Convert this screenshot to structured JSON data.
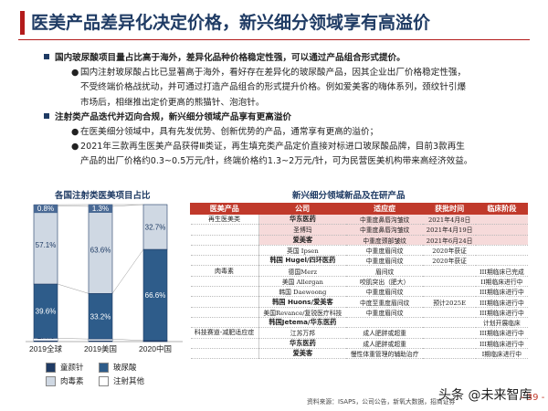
{
  "header": {
    "title": "医美产品差异化决定价格，新兴细分领域享有高溢价"
  },
  "body": {
    "b1": "国内玻尿酸项目量占比高于海外，差异化品种价格稳定性强，可以通过产品组合形式提价。",
    "b1_text_l1": "国内注射玻尿酸占比已显著高于海外，看好存在差异化的玻尿酸产品，因其企业出厂价格稳定性强，",
    "b1_text_l2": "不受终端价格战扰动，并可通过打造产品组合的形式提升价格。例如爱美客的嗨体系列，颈纹针引爆",
    "b1_text_l3": "市场后，相继推出定价更高的熊猫针、泡泡针。",
    "b2": "注射类产品迭代并迈向合规，新兴细分领域产品享有更高溢价",
    "b2_p1": "在医美细分领域中，具有先发优势、创新优势的产品，通常享有更高的溢价；",
    "b2_p2_l1": "2021年三款再生医美产品获得Ⅲ类证，再生填充类产品定价直接对标进口玻尿酸品牌，目前3款再生",
    "b2_p2_l2": "产品的出厂价格约0.3~0.5万元/针，终端价格约1.3~2万元/针，可为民营医美机构带来高经济效益。"
  },
  "left_chart_title": "各国注射类医美项目占比",
  "right_table_title": "新兴细分领域新品及在研产品",
  "chart_data": {
    "type": "bar",
    "stacked": true,
    "categories": [
      "2019全球",
      "2019美国",
      "2020中国"
    ],
    "series": [
      {
        "name": "童颜针",
        "color": "#1f3b64",
        "values": [
          2.4,
          1.9,
          0.7
        ]
      },
      {
        "name": "玻尿酸",
        "color": "#2e5c8a",
        "values": [
          39.6,
          33.2,
          66.6
        ]
      },
      {
        "name": "肉毒素",
        "color": "#cfd8e3",
        "values": [
          57.1,
          63.6,
          32.7
        ]
      },
      {
        "name": "注射其他",
        "color": "#ffffff",
        "values": [
          0.8,
          1.3,
          0.0
        ]
      }
    ],
    "labels": [
      [
        "2.4%",
        "39.6%",
        "57.1%",
        "0.8%"
      ],
      [
        "1.9%",
        "33.2%",
        "63.6%",
        "1.3%"
      ],
      [
        "0.7%",
        "66.6%",
        "32.7%",
        ""
      ]
    ],
    "ylim": [
      0,
      100
    ]
  },
  "table": {
    "headers": [
      "医美产品",
      "公司",
      "适应症",
      "获批时间",
      "临床阶段"
    ],
    "rows": [
      {
        "cat": "再生医美类",
        "company": "华东医药",
        "bold": true,
        "ind": "中重度鼻唇沟皱纹",
        "date": "2021年4月8日",
        "stage": "",
        "band": true
      },
      {
        "cat": "",
        "company": "圣博玛",
        "bold": false,
        "ind": "中重度鼻唇沟皱纹",
        "date": "2021年4月19日",
        "stage": "",
        "band": true
      },
      {
        "cat": "",
        "company": "爱美客",
        "bold": true,
        "ind": "中重度颈部皱纹",
        "date": "2021年6月24日",
        "stage": "",
        "band": true
      },
      {
        "cat": "",
        "company": "英国 Ipsen",
        "bold": false,
        "ind": "中重度眉间纹",
        "date": "2020年获证",
        "stage": "",
        "band": false
      },
      {
        "cat": "",
        "company": "韩国 Hugel/四环医药",
        "bold": true,
        "ind": "中重度眉间纹",
        "date": "2020年获证",
        "stage": "",
        "band": false
      },
      {
        "cat": "肉毒素",
        "company": "德国Merz",
        "bold": false,
        "ind": "眉间纹",
        "date": "",
        "stage": "III期临床已完成",
        "band": false
      },
      {
        "cat": "",
        "company": "美国 Allergan",
        "bold": false,
        "ind": "咬肌突出（肥大）",
        "date": "",
        "stage": "II期临床进行中",
        "band": false
      },
      {
        "cat": "",
        "company": "韩国 Daewoong",
        "bold": false,
        "ind": "中重度眉间纹",
        "date": "",
        "stage": "III期临床进行中",
        "band": false
      },
      {
        "cat": "",
        "company": "韩国 Huons/爱美客",
        "bold": true,
        "ind": "中度至重度眉间纹",
        "date": "预计2025E",
        "stage": "III期临床进行中",
        "band": false
      },
      {
        "cat": "",
        "company": "美国Revance/复锐医疗科技",
        "bold": false,
        "ind": "中重度眉间纹",
        "date": "",
        "stage": "III期临床进行中",
        "band": false
      },
      {
        "cat": "",
        "company": "韩国Jetema/华东医药",
        "bold": true,
        "ind": "",
        "date": "",
        "stage": "计划开展临床",
        "band": false
      },
      {
        "cat": "科技赛道-减肥适应症",
        "company": "江苏万邦",
        "bold": false,
        "ind": "成人肥胖或超重",
        "date": "",
        "stage": "III期临床进行中",
        "band": false
      },
      {
        "cat": "",
        "company": "华东医药",
        "bold": true,
        "ind": "成人肥胖或超重",
        "date": "",
        "stage": "III期临床进行中",
        "band": false
      },
      {
        "cat": "",
        "company": "爱美客",
        "bold": true,
        "ind": "慢性体重管理的辅助治疗",
        "date": "",
        "stage": "I期临床进行中",
        "band": false
      }
    ]
  },
  "footer": {
    "source": "资料来源：ISAPS，公司公告，新氧大数据，招商证券",
    "watermark": "头条 @未来智库",
    "page": "- 39 -"
  }
}
